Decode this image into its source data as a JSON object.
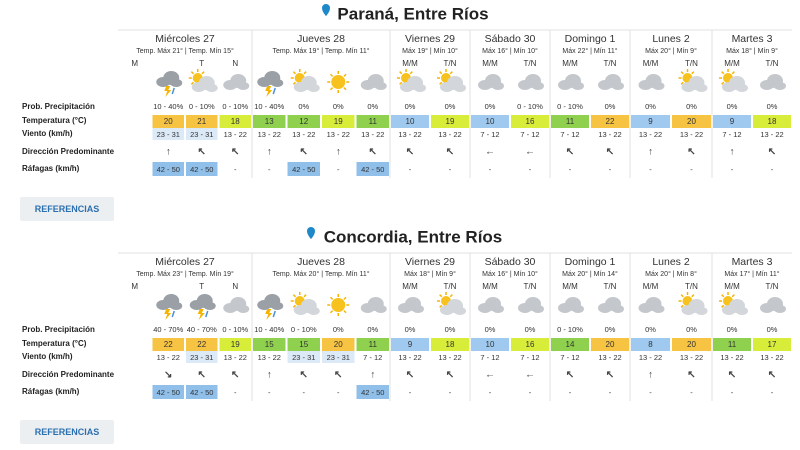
{
  "row_labels": [
    "Prob. Precipitación",
    "Temperatura (°C)",
    "Viento (km/h)",
    "Dirección Predominante",
    "Ráfagas (km/h)"
  ],
  "button": "REFERENCIAS",
  "locations": [
    {
      "title": "Paraná, Entre Ríos",
      "days": [
        {
          "name": "Miércoles 27",
          "temps": "Temp. Máx 21° | Temp. Mín 15°",
          "periods": [
            "M",
            null,
            "T",
            "N"
          ],
          "precip": [
            null,
            "10 - 40%",
            "0 - 10%",
            "0 - 10%"
          ],
          "temp": [
            null,
            20,
            21,
            18
          ],
          "wind": [
            null,
            "23 - 31",
            "23 - 31",
            "13 - 22"
          ],
          "dir": [
            null,
            "↑",
            "↖",
            "↖"
          ],
          "gust": [
            null,
            "42 - 50",
            "42 - 50",
            "-"
          ]
        },
        {
          "name": "Jueves 28",
          "temps": "Temp. Máx 19° | Temp. Mín 11°",
          "precip": [
            "10 - 40%",
            "0%",
            "0%",
            "0%"
          ],
          "temp": [
            13,
            12,
            19,
            11
          ],
          "wind": [
            "13 - 22",
            "13 - 22",
            "13 - 22",
            "13 - 22"
          ],
          "dir": [
            "↑",
            "↖",
            "↑",
            "↖"
          ],
          "gust": [
            "-",
            "42 - 50",
            "-",
            "42 - 50"
          ]
        },
        {
          "name": "Viernes 29",
          "temps": "Máx 19° | Mín 10°",
          "periods": [
            "M/M",
            "T/N"
          ],
          "precip": [
            "0%",
            "0%"
          ],
          "temp": [
            10,
            19
          ],
          "wind": [
            "13 - 22",
            "13 - 22"
          ],
          "dir": [
            "↖",
            "↖"
          ],
          "gust": [
            "-",
            "-"
          ]
        },
        {
          "name": "Sábado 30",
          "temps": "Máx 16° | Mín 10°",
          "periods": [
            "M/M",
            "T/N"
          ],
          "precip": [
            "0%",
            "0 - 10%"
          ],
          "temp": [
            10,
            16
          ],
          "wind": [
            "7 - 12",
            "7 - 12"
          ],
          "dir": [
            "←",
            "←"
          ],
          "gust": [
            "-",
            "-"
          ]
        },
        {
          "name": "Domingo 1",
          "temps": "Máx 22° | Mín 11°",
          "periods": [
            "M/M",
            "T/N"
          ],
          "precip": [
            "0 - 10%",
            "0%"
          ],
          "temp": [
            11,
            22
          ],
          "wind": [
            "7 - 12",
            "13 - 22"
          ],
          "dir": [
            "↖",
            "↖"
          ],
          "gust": [
            "-",
            "-"
          ]
        },
        {
          "name": "Lunes 2",
          "temps": "Máx 20° | Mín 9°",
          "periods": [
            "M/M",
            "T/N"
          ],
          "precip": [
            "0%",
            "0%"
          ],
          "temp": [
            9,
            20
          ],
          "wind": [
            "13 - 22",
            "13 - 22"
          ],
          "dir": [
            "↑",
            "↖"
          ],
          "gust": [
            "-",
            "-"
          ]
        },
        {
          "name": "Martes 3",
          "temps": "Máx 18° | Mín 9°",
          "periods": [
            "M/M",
            "T/N"
          ],
          "precip": [
            "0%",
            "0%"
          ],
          "temp": [
            9,
            18
          ],
          "wind": [
            "7 - 12",
            "13 - 22"
          ],
          "dir": [
            "↑",
            "↖"
          ],
          "gust": [
            "-",
            "-"
          ]
        }
      ]
    },
    {
      "title": "Concordia, Entre Ríos",
      "days": [
        {
          "name": "Miércoles 27",
          "temps": "Temp. Máx 23° | Temp. Mín 19°",
          "periods": [
            "M",
            null,
            "T",
            "N"
          ],
          "precip": [
            null,
            "40 - 70%",
            "40 - 70%",
            "0 - 10%"
          ],
          "temp": [
            null,
            22,
            22,
            19
          ],
          "wind": [
            null,
            "13 - 22",
            "23 - 31",
            "13 - 22"
          ],
          "dir": [
            null,
            "↘",
            "↖",
            "↖"
          ],
          "gust": [
            null,
            "42 - 50",
            "42 - 50",
            "-"
          ]
        },
        {
          "name": "Jueves 28",
          "temps": "Temp. Máx 20° | Temp. Mín 11°",
          "precip": [
            "10 - 40%",
            "0 - 10%",
            "0%",
            "0%"
          ],
          "temp": [
            15,
            15,
            20,
            11
          ],
          "wind": [
            "13 - 22",
            "23 - 31",
            "23 - 31",
            "7 - 12"
          ],
          "dir": [
            "↑",
            "↖",
            "↖",
            "↑"
          ],
          "gust": [
            "-",
            "-",
            "-",
            "42 - 50"
          ]
        },
        {
          "name": "Viernes 29",
          "temps": "Máx 18° | Mín 9°",
          "periods": [
            "M/M",
            "T/N"
          ],
          "precip": [
            "0%",
            "0%"
          ],
          "temp": [
            9,
            18
          ],
          "wind": [
            "13 - 22",
            "13 - 22"
          ],
          "dir": [
            "↖",
            "↖"
          ],
          "gust": [
            "-",
            "-"
          ]
        },
        {
          "name": "Sábado 30",
          "temps": "Máx 16° | Mín 10°",
          "periods": [
            "M/M",
            "T/N"
          ],
          "precip": [
            "0%",
            "0%"
          ],
          "temp": [
            10,
            16
          ],
          "wind": [
            "7 - 12",
            "7 - 12"
          ],
          "dir": [
            "←",
            "←"
          ],
          "gust": [
            "-",
            "-"
          ]
        },
        {
          "name": "Domingo 1",
          "temps": "Máx 20° | Mín 14°",
          "periods": [
            "M/M",
            "T/N"
          ],
          "precip": [
            "0 - 10%",
            "0%"
          ],
          "temp": [
            14,
            20
          ],
          "wind": [
            "7 - 12",
            "13 - 22"
          ],
          "dir": [
            "↖",
            "↖"
          ],
          "gust": [
            "-",
            "-"
          ]
        },
        {
          "name": "Lunes 2",
          "temps": "Máx 20° | Mín 8°",
          "periods": [
            "M/M",
            "T/N"
          ],
          "precip": [
            "0%",
            "0%"
          ],
          "temp": [
            8,
            20
          ],
          "wind": [
            "13 - 22",
            "13 - 22"
          ],
          "dir": [
            "↑",
            "↖"
          ],
          "gust": [
            "-",
            "-"
          ]
        },
        {
          "name": "Martes 3",
          "temps": "Máx 17° | Mín 11°",
          "periods": [
            "M/M",
            "T/N"
          ],
          "precip": [
            "0%",
            "0%"
          ],
          "temp": [
            11,
            17
          ],
          "wind": [
            "13 - 22",
            "13 - 22"
          ],
          "dir": [
            "↖",
            "↖"
          ],
          "gust": [
            "-",
            "-"
          ]
        }
      ]
    }
  ]
}
